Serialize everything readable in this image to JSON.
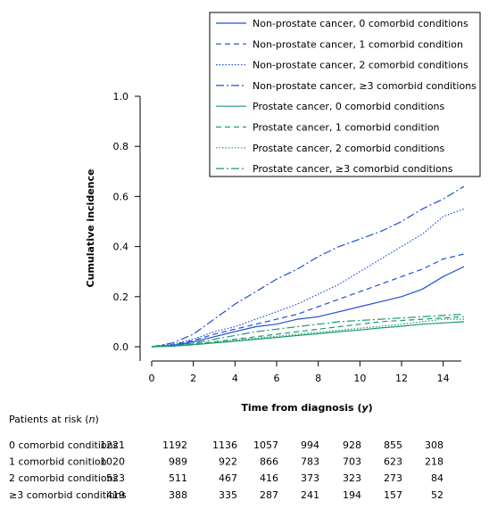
{
  "chart_data": {
    "type": "line",
    "xlabel": "Time from diagnosis",
    "xlabel_unit": "y",
    "ylabel": "Cumulative incidence",
    "xlim": [
      0,
      15
    ],
    "ylim": [
      0,
      1.0
    ],
    "xticks": [
      0,
      2,
      4,
      6,
      8,
      10,
      12,
      14
    ],
    "yticks": [
      0.0,
      0.2,
      0.4,
      0.6,
      0.8,
      1.0
    ],
    "ytick_labels": [
      "0.0",
      "0.2",
      "0.4",
      "0.6",
      "0.8",
      "1.0"
    ],
    "grid": false,
    "legend_position": "top-right",
    "series": [
      {
        "name": "Non-prostate cancer, 0 comorbid conditions",
        "color": "#1f4fd8",
        "dash": "solid",
        "x": [
          0,
          1,
          2,
          3,
          4,
          5,
          6,
          7,
          8,
          9,
          10,
          11,
          12,
          13,
          14,
          15
        ],
        "y": [
          0,
          0.005,
          0.02,
          0.04,
          0.06,
          0.08,
          0.09,
          0.11,
          0.12,
          0.14,
          0.16,
          0.18,
          0.2,
          0.23,
          0.28,
          0.32
        ]
      },
      {
        "name": "Non-prostate cancer, 1 comorbid condition",
        "color": "#1f4fd8",
        "dash": "dash",
        "x": [
          0,
          1,
          2,
          3,
          4,
          5,
          6,
          7,
          8,
          9,
          10,
          11,
          12,
          13,
          14,
          15
        ],
        "y": [
          0,
          0.008,
          0.025,
          0.05,
          0.07,
          0.09,
          0.11,
          0.13,
          0.16,
          0.19,
          0.22,
          0.25,
          0.28,
          0.31,
          0.35,
          0.37
        ]
      },
      {
        "name": "Non-prostate cancer, 2 comorbid conditions",
        "color": "#1f4fd8",
        "dash": "dot",
        "x": [
          0,
          1,
          2,
          3,
          4,
          5,
          6,
          7,
          8,
          9,
          10,
          11,
          12,
          13,
          14,
          15
        ],
        "y": [
          0,
          0.01,
          0.03,
          0.06,
          0.08,
          0.11,
          0.14,
          0.17,
          0.21,
          0.25,
          0.3,
          0.35,
          0.4,
          0.45,
          0.52,
          0.55
        ]
      },
      {
        "name": "Non-prostate cancer, ≥3 comorbid conditions",
        "color": "#1f4fd8",
        "dash": "dashdot",
        "x": [
          0,
          1,
          2,
          3,
          4,
          5,
          6,
          7,
          8,
          9,
          10,
          11,
          12,
          13,
          14,
          15
        ],
        "y": [
          0,
          0.015,
          0.05,
          0.11,
          0.17,
          0.22,
          0.27,
          0.31,
          0.36,
          0.4,
          0.43,
          0.46,
          0.5,
          0.55,
          0.59,
          0.64
        ]
      },
      {
        "name": "Prostate cancer, 0 comorbid conditions",
        "color": "#1a9a6e",
        "dash": "solid",
        "x": [
          0,
          1,
          2,
          3,
          4,
          5,
          6,
          7,
          8,
          9,
          10,
          11,
          12,
          13,
          14,
          15
        ],
        "y": [
          0,
          0.002,
          0.008,
          0.015,
          0.022,
          0.03,
          0.037,
          0.045,
          0.052,
          0.06,
          0.067,
          0.075,
          0.082,
          0.09,
          0.095,
          0.1
        ]
      },
      {
        "name": "Prostate cancer, 1 comorbid condition",
        "color": "#1a9a6e",
        "dash": "dash",
        "x": [
          0,
          1,
          2,
          3,
          4,
          5,
          6,
          7,
          8,
          9,
          10,
          11,
          12,
          13,
          14,
          15
        ],
        "y": [
          0,
          0.004,
          0.012,
          0.02,
          0.03,
          0.04,
          0.05,
          0.06,
          0.07,
          0.08,
          0.09,
          0.1,
          0.105,
          0.11,
          0.115,
          0.12
        ]
      },
      {
        "name": "Prostate cancer, 2 comorbid conditions",
        "color": "#1a9a6e",
        "dash": "dot",
        "x": [
          0,
          1,
          2,
          3,
          4,
          5,
          6,
          7,
          8,
          9,
          10,
          11,
          12,
          13,
          14,
          15
        ],
        "y": [
          0,
          0.003,
          0.01,
          0.018,
          0.026,
          0.034,
          0.042,
          0.05,
          0.058,
          0.066,
          0.074,
          0.082,
          0.09,
          0.1,
          0.11,
          0.11
        ]
      },
      {
        "name": "Prostate cancer, ≥3 comorbid conditions",
        "color": "#1a9a6e",
        "dash": "dashdot",
        "x": [
          0,
          1,
          2,
          3,
          4,
          5,
          6,
          7,
          8,
          9,
          10,
          11,
          12,
          13,
          14,
          15
        ],
        "y": [
          0,
          0.005,
          0.015,
          0.03,
          0.045,
          0.06,
          0.07,
          0.08,
          0.09,
          0.1,
          0.105,
          0.11,
          0.115,
          0.12,
          0.125,
          0.13
        ]
      }
    ],
    "risk_table": {
      "title": "Patients at risk",
      "title_unit": "n",
      "rows": [
        {
          "label": "0 comorbid conditions",
          "values": [
            "1221",
            "1192",
            "1136",
            "1057",
            "994",
            "928",
            "855",
            "308"
          ]
        },
        {
          "label": "1 comorbid conition",
          "values": [
            "1020",
            "989",
            "922",
            "866",
            "783",
            "703",
            "623",
            "218"
          ]
        },
        {
          "label": "2 comorbid conditions",
          "values": [
            "523",
            "511",
            "467",
            "416",
            "373",
            "323",
            "273",
            "84"
          ]
        },
        {
          "label": "≥3 comorbid conditions",
          "values": [
            "419",
            "388",
            "335",
            "287",
            "241",
            "194",
            "157",
            "52"
          ]
        }
      ]
    }
  }
}
